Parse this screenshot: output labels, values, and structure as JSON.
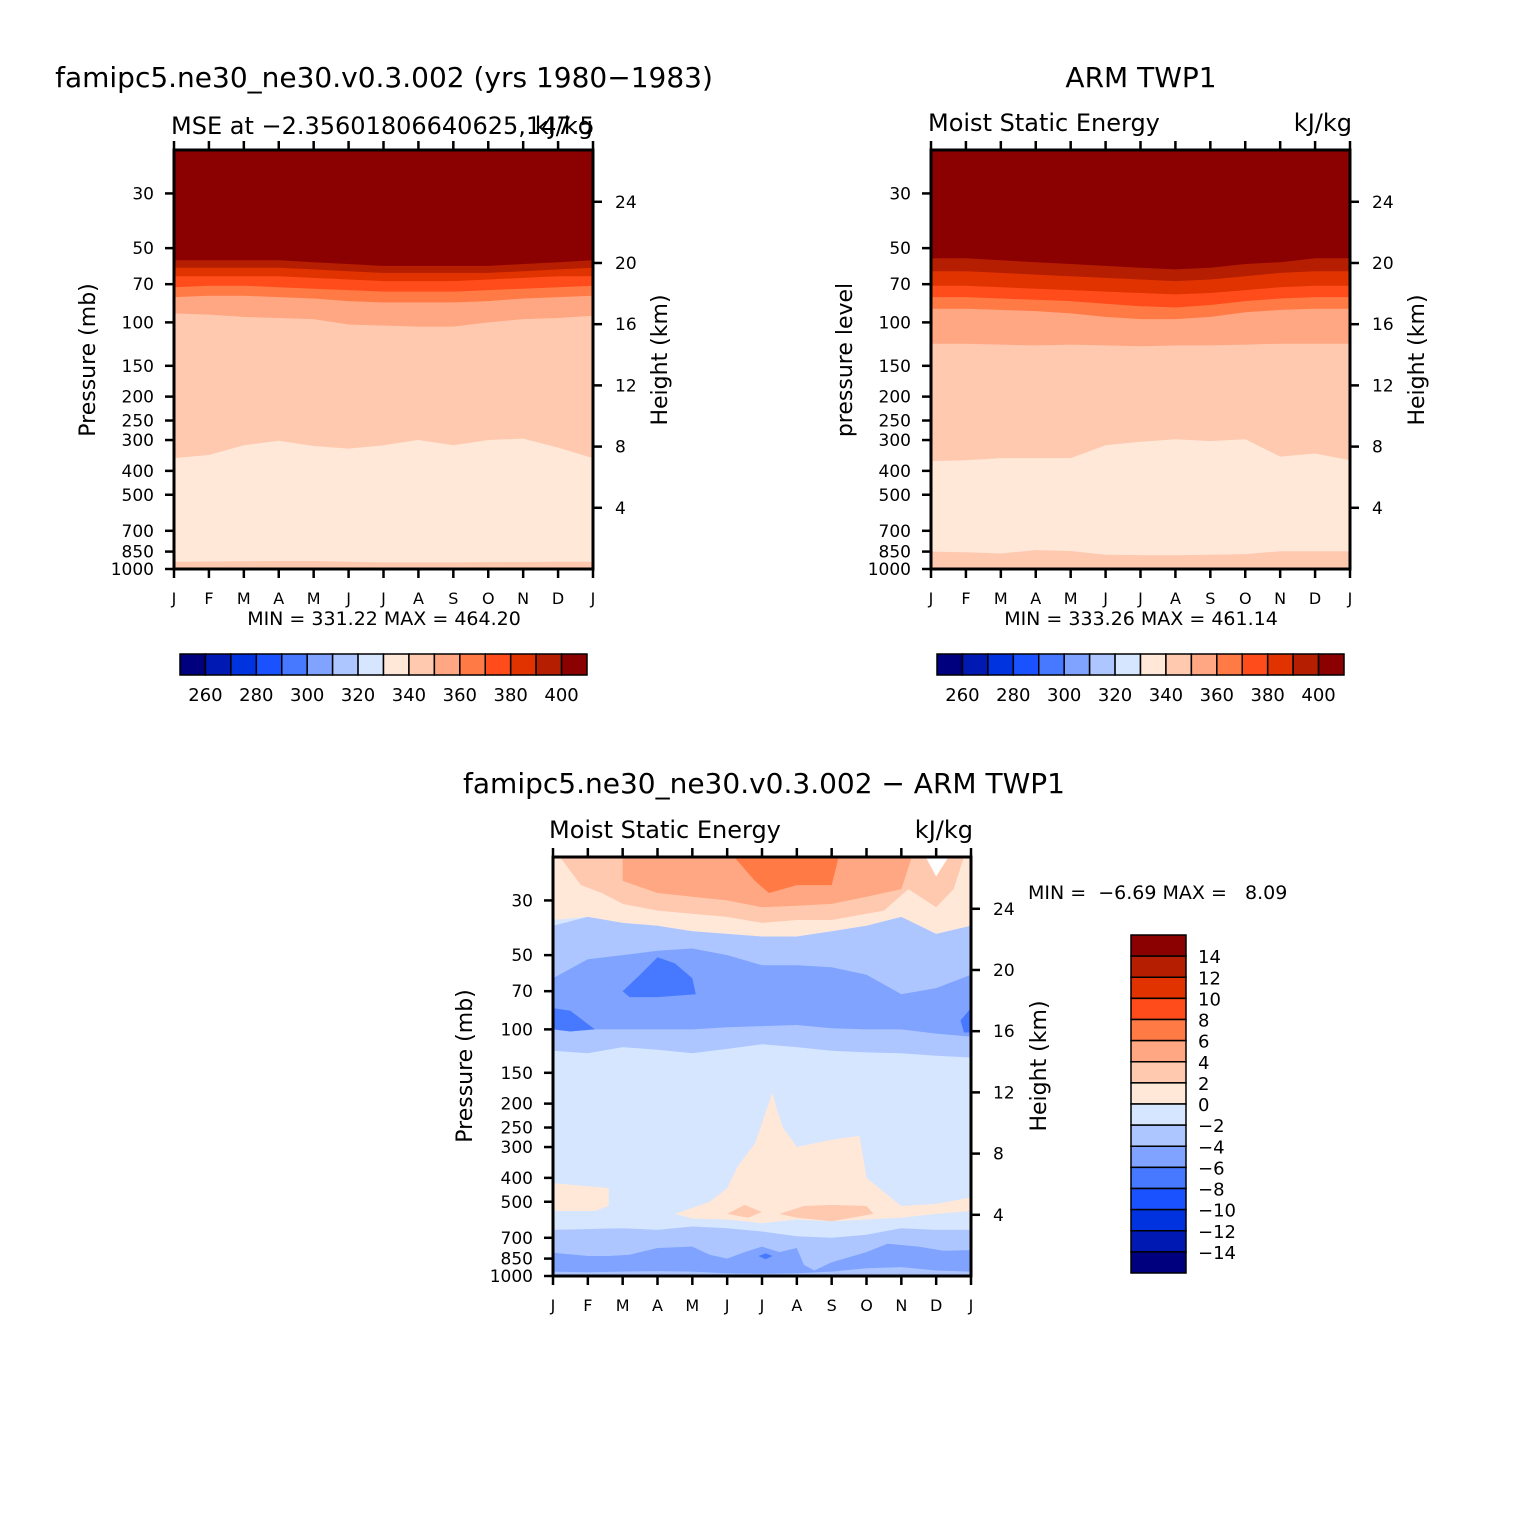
{
  "panels": [
    {
      "title": "famipc5.ne30_ne30.v0.3.002 (yrs 1980−1983)",
      "left_label": "MSE at −2.35601806640625,147.5",
      "right_label": "kJ/kg",
      "ylabel_left": "Pressure (mb)",
      "ylabel_right": "Height (km)",
      "minmax": "MIN = 331.22 MAX = 464.20"
    },
    {
      "title": "ARM TWP1",
      "left_label": "Moist Static Energy",
      "right_label": "kJ/kg",
      "ylabel_left": "pressure level",
      "ylabel_right": "Height (km)",
      "minmax": "MIN = 333.26 MAX = 461.14"
    },
    {
      "title": "famipc5.ne30_ne30.v0.3.002 − ARM TWP1",
      "left_label": "Moist Static Energy",
      "right_label": "kJ/kg",
      "ylabel_left": "Pressure (mb)",
      "ylabel_right": "Height (km)",
      "minmax": "MIN =  −6.69 MAX =   8.09"
    }
  ],
  "chart_data": [
    {
      "type": "heatmap",
      "title": "famipc5.ne30_ne30.v0.3.002 (yrs 1980−1983)",
      "subtitle": "MSE at −2.35601806640625,147.5",
      "units": "kJ/kg",
      "xlabel": "",
      "ylabel": "Pressure (mb)",
      "ylabel_right": "Height (km)",
      "x_ticks": [
        "J",
        "F",
        "M",
        "A",
        "M",
        "J",
        "J",
        "A",
        "S",
        "O",
        "N",
        "D",
        "J"
      ],
      "y_ticks_pressure": [
        30,
        50,
        70,
        100,
        150,
        200,
        250,
        300,
        400,
        500,
        700,
        850,
        1000
      ],
      "y_ticks_height": [
        24,
        20,
        16,
        12,
        8,
        4
      ],
      "colorbar_labels": [
        "260",
        "280",
        "300",
        "320",
        "340",
        "360",
        "380",
        "400"
      ],
      "min": 331.22,
      "max": 464.2,
      "band_boundaries_mb": [
        [
          56,
          56,
          56,
          56,
          57,
          58,
          59,
          59,
          59,
          59,
          58,
          57,
          56
        ],
        [
          60,
          60,
          60,
          60,
          61,
          62,
          63,
          63,
          63,
          63,
          62,
          61,
          60
        ],
        [
          65,
          65,
          65,
          65,
          66,
          67,
          68,
          68,
          68,
          67,
          66,
          65,
          65
        ],
        [
          72,
          71,
          71,
          72,
          73,
          74,
          75,
          75,
          75,
          74,
          73,
          72,
          71
        ],
        [
          79,
          78,
          78,
          79,
          80,
          82,
          83,
          83,
          83,
          82,
          80,
          79,
          78
        ],
        [
          92,
          93,
          95,
          96,
          97,
          102,
          103,
          104,
          104,
          100,
          97,
          96,
          94
        ],
        [
          108,
          110,
          113,
          114,
          117,
          119,
          121,
          120,
          119,
          114,
          110,
          108,
          107
        ],
        [
          355,
          345,
          315,
          302,
          317,
          325,
          315,
          300,
          315,
          300,
          296,
          322,
          355
        ],
        [
          935,
          932,
          930,
          928,
          928,
          935,
          940,
          940,
          940,
          938,
          937,
          935,
          935
        ]
      ]
    },
    {
      "type": "heatmap",
      "title": "ARM TWP1",
      "subtitle": "Moist Static Energy",
      "units": "kJ/kg",
      "xlabel": "",
      "ylabel": "pressure level",
      "ylabel_right": "Height (km)",
      "x_ticks": [
        "J",
        "F",
        "M",
        "A",
        "M",
        "J",
        "J",
        "A",
        "S",
        "O",
        "N",
        "D",
        "J"
      ],
      "y_ticks_pressure": [
        30,
        50,
        70,
        100,
        150,
        200,
        250,
        300,
        400,
        500,
        700,
        850,
        1000
      ],
      "y_ticks_height": [
        24,
        20,
        16,
        12,
        8,
        4
      ],
      "colorbar_labels": [
        "260",
        "280",
        "300",
        "320",
        "340",
        "360",
        "380",
        "400"
      ],
      "min": 333.26,
      "max": 461.14,
      "band_boundaries_mb": [
        [
          55,
          55,
          56,
          57,
          58,
          59,
          60,
          61,
          60,
          58,
          57,
          55,
          55
        ],
        [
          62,
          62,
          63,
          64,
          65,
          66,
          67,
          68,
          67,
          65,
          63,
          62,
          62
        ],
        [
          71,
          71,
          72,
          73,
          74,
          75,
          76,
          77,
          76,
          74,
          72,
          71,
          71
        ],
        [
          79,
          79,
          80,
          81,
          82,
          84,
          86,
          87,
          85,
          82,
          80,
          79,
          79
        ],
        [
          88,
          88,
          89,
          90,
          92,
          95,
          97,
          97,
          95,
          91,
          89,
          88,
          88
        ],
        [
          122,
          122,
          123,
          124,
          123,
          124,
          125,
          124,
          124,
          123,
          122,
          122,
          122
        ],
        [
          365,
          362,
          355,
          355,
          355,
          315,
          305,
          298,
          303,
          298,
          350,
          340,
          362
        ],
        [
          850,
          855,
          865,
          838,
          845,
          875,
          878,
          880,
          875,
          870,
          848,
          848,
          848
        ]
      ]
    },
    {
      "type": "heatmap",
      "title": "famipc5.ne30_ne30.v0.3.002 − ARM TWP1",
      "subtitle": "Moist Static Energy",
      "units": "kJ/kg",
      "xlabel": "",
      "ylabel": "Pressure (mb)",
      "ylabel_right": "Height (km)",
      "x_ticks": [
        "J",
        "F",
        "M",
        "A",
        "M",
        "J",
        "J",
        "A",
        "S",
        "O",
        "N",
        "D",
        "J"
      ],
      "y_ticks_pressure": [
        30,
        50,
        70,
        100,
        150,
        200,
        250,
        300,
        400,
        500,
        700,
        850,
        1000
      ],
      "y_ticks_height": [
        24,
        20,
        16,
        12,
        8,
        4
      ],
      "colorbar_labels": [
        "14",
        "12",
        "10",
        "8",
        "6",
        "4",
        "2",
        "0",
        "−2",
        "−4",
        "−6",
        "−8",
        "−10",
        "−12",
        "−14"
      ],
      "min": -6.69,
      "max": 8.09
    }
  ],
  "colors": {
    "mse_scale": [
      "#00007f",
      "#0019b2",
      "#0033e0",
      "#1a52ff",
      "#4679ff",
      "#7fa3ff",
      "#adc6ff",
      "#d6e6ff",
      "#ffe8d8",
      "#ffc9b0",
      "#ffa682",
      "#ff7a45",
      "#ff4c1a",
      "#e03300",
      "#b51e00",
      "#8b0000"
    ],
    "diff_scale_top_down": [
      "#8b0000",
      "#b51e00",
      "#e03300",
      "#ff4c1a",
      "#ff7a45",
      "#ffa682",
      "#ffc9b0",
      "#ffe8d8",
      "#d6e6ff",
      "#adc6ff",
      "#7fa3ff",
      "#4679ff",
      "#1a52ff",
      "#0033e0",
      "#0019b2",
      "#00007f"
    ]
  }
}
